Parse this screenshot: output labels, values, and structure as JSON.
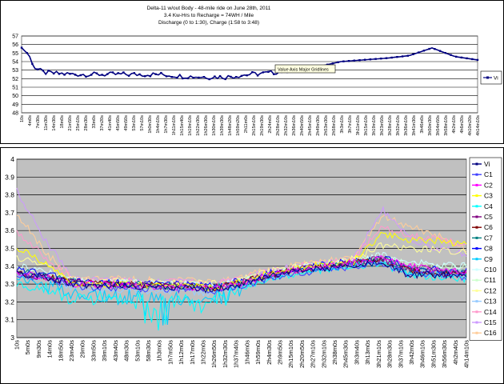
{
  "chart_data": [
    {
      "type": "line",
      "title": "Delta-11 w/out Body -  48-mile ride on June 28th, 2011",
      "subtitle": [
        "3.4 Kw-Hrs to Recharge = 74WH / Mile",
        "Discharge (0 to 1:30), Charge (1:58 to 3:48)"
      ],
      "x_ticks": [
        "10s",
        "4m0s",
        "7m30s",
        "11m30s",
        "14m30s",
        "18m0s",
        "21m50s",
        "25m10s",
        "28m30s",
        "33m0s",
        "37m20s",
        "41m40s",
        "45m50s",
        "49m50s",
        "53m10s",
        "57m10s",
        "1h0m30s",
        "1h4m10s",
        "1h7m30s",
        "1h11m10s",
        "1h15m40s",
        "1h19m10s",
        "1h22m30s",
        "1h26m30s",
        "1h30m10s",
        "1h39m30s",
        "1h48m20s",
        "1h59m20s",
        "2h11m0s",
        "2h15m10s",
        "2h19m30s",
        "2h24m0s",
        "2h28m10s",
        "2h32m10s",
        "2h36m10s",
        "2h40m50s",
        "2h45m10s",
        "2h49m30s",
        "2h53m30s",
        "2h58m10s",
        "3h3m10s",
        "3h7m10s",
        "3h11m10s",
        "3h15m10s",
        "3h19m10s",
        "3h23m50s",
        "3h28m10s",
        "3h32m10s",
        "3h36m10s",
        "3h41m30s",
        "3h46m0s",
        "3h50m30s",
        "3h54m50s",
        "3h58m10s",
        "4h2m10s",
        "4h6m20s",
        "4h10m20s",
        "4h14m10s"
      ],
      "y_ticks": [
        "48",
        "49",
        "50",
        "51",
        "52",
        "53",
        "54",
        "55",
        "56",
        "57"
      ],
      "ylim": [
        48,
        57
      ],
      "grid": true,
      "legend_position": "right",
      "annotation": "Value Axis Major Gridlines",
      "series": [
        {
          "name": "Vi",
          "color": "#000080",
          "x": [
            0,
            0.01,
            0.02,
            0.03,
            0.05,
            0.08,
            0.12,
            0.2,
            0.3,
            0.35,
            0.4,
            0.45,
            0.5,
            0.55,
            0.6,
            0.65,
            0.7,
            0.75,
            0.8,
            0.85,
            0.9,
            0.95,
            1.0
          ],
          "values": [
            55.6,
            55.2,
            54.3,
            53.2,
            52.7,
            52.6,
            52.5,
            52.5,
            52.5,
            52.3,
            52.2,
            52.2,
            52.5,
            52.7,
            53.1,
            53.4,
            54.0,
            54.2,
            54.4,
            54.7,
            55.6,
            54.6,
            54.2
          ]
        }
      ]
    },
    {
      "type": "line",
      "x_ticks": [
        "10s",
        "5m0s",
        "9m30s",
        "14m0s",
        "18m50s",
        "23m40s",
        "29m0s",
        "33m50s",
        "39m10s",
        "43m40s",
        "48m30s",
        "53m10s",
        "58m30s",
        "1h3m0s",
        "1h7m50s",
        "1h12m0s",
        "1h17m0s",
        "1h22m0s",
        "1h26m50s",
        "1h32m30s",
        "1h37m40s",
        "1h46m0s",
        "1h59m0s",
        "2h4m30s",
        "2h9m50s",
        "2h15m10s",
        "2h20m50s",
        "2h27m10s",
        "2h32m10s",
        "2h38m0s",
        "2h45m30s",
        "3h3m40s",
        "3h13m0s",
        "3h21m10s",
        "3h28m30s",
        "3h37m10s",
        "3h42m0s",
        "3h46m10s",
        "3h51m30s",
        "3h56m30s",
        "4h2m40s",
        "4h14m10s"
      ],
      "y_ticks": [
        "3",
        "3.1",
        "3.2",
        "3.3",
        "3.4",
        "3.5",
        "3.6",
        "3.7",
        "3.8",
        "3.9",
        "4"
      ],
      "ylim": [
        3,
        4
      ],
      "grid": true,
      "legend_position": "right",
      "series": [
        {
          "name": "Vi",
          "color": "#000080",
          "values": [
            3.36,
            3.34,
            3.3,
            3.29,
            3.29,
            3.28,
            3.28,
            3.27,
            3.3,
            3.34,
            3.37,
            3.39,
            3.41,
            3.42,
            3.35,
            3.35,
            3.35
          ]
        },
        {
          "name": "C1",
          "color": "#4040ff",
          "values": [
            3.35,
            3.33,
            3.29,
            3.28,
            3.28,
            3.27,
            3.27,
            3.26,
            3.29,
            3.33,
            3.36,
            3.38,
            3.4,
            3.41,
            3.36,
            3.35,
            3.34
          ]
        },
        {
          "name": "C2",
          "color": "#ff00ff",
          "values": [
            3.36,
            3.34,
            3.3,
            3.3,
            3.29,
            3.28,
            3.28,
            3.27,
            3.3,
            3.35,
            3.38,
            3.4,
            3.42,
            3.45,
            3.4,
            3.38,
            3.37
          ]
        },
        {
          "name": "C3",
          "color": "#ffff00",
          "values": [
            3.5,
            3.42,
            3.3,
            3.3,
            3.3,
            3.29,
            3.29,
            3.28,
            3.31,
            3.36,
            3.39,
            3.41,
            3.43,
            3.58,
            3.55,
            3.54,
            3.52
          ]
        },
        {
          "name": "C4",
          "color": "#00ffff",
          "values": [
            3.3,
            3.26,
            3.22,
            3.22,
            3.22,
            3.2,
            3.19,
            3.2,
            3.28,
            3.33,
            3.36,
            3.38,
            3.4,
            3.41,
            3.35,
            3.34,
            3.33
          ]
        },
        {
          "name": "C5",
          "color": "#800080",
          "values": [
            3.36,
            3.34,
            3.31,
            3.3,
            3.3,
            3.29,
            3.29,
            3.28,
            3.31,
            3.35,
            3.38,
            3.4,
            3.42,
            3.44,
            3.38,
            3.37,
            3.36
          ]
        },
        {
          "name": "C6",
          "color": "#800000",
          "values": [
            3.36,
            3.34,
            3.31,
            3.3,
            3.3,
            3.29,
            3.29,
            3.28,
            3.31,
            3.35,
            3.38,
            3.4,
            3.42,
            3.43,
            3.37,
            3.36,
            3.35
          ]
        },
        {
          "name": "C7",
          "color": "#008080",
          "values": [
            3.37,
            3.35,
            3.31,
            3.3,
            3.3,
            3.29,
            3.29,
            3.28,
            3.31,
            3.35,
            3.38,
            3.4,
            3.42,
            3.44,
            3.38,
            3.37,
            3.36
          ]
        },
        {
          "name": "C8",
          "color": "#0000ff",
          "values": [
            3.38,
            3.36,
            3.32,
            3.31,
            3.31,
            3.3,
            3.3,
            3.29,
            3.32,
            3.36,
            3.39,
            3.41,
            3.43,
            3.45,
            3.39,
            3.38,
            3.37
          ]
        },
        {
          "name": "C9",
          "color": "#00ccff",
          "values": [
            3.34,
            3.3,
            3.24,
            3.23,
            3.23,
            3.22,
            3.21,
            3.22,
            3.29,
            3.34,
            3.37,
            3.39,
            3.41,
            3.42,
            3.36,
            3.35,
            3.34
          ]
        },
        {
          "name": "C10",
          "color": "#ccffff",
          "values": [
            3.4,
            3.37,
            3.32,
            3.31,
            3.31,
            3.3,
            3.3,
            3.29,
            3.32,
            3.36,
            3.39,
            3.41,
            3.43,
            3.46,
            3.42,
            3.41,
            3.4
          ]
        },
        {
          "name": "C11",
          "color": "#ccffcc",
          "values": [
            3.38,
            3.35,
            3.31,
            3.31,
            3.31,
            3.3,
            3.3,
            3.29,
            3.32,
            3.36,
            3.39,
            3.41,
            3.43,
            3.45,
            3.41,
            3.4,
            3.39
          ]
        },
        {
          "name": "C12",
          "color": "#ffff99",
          "values": [
            3.45,
            3.4,
            3.32,
            3.32,
            3.32,
            3.31,
            3.31,
            3.3,
            3.33,
            3.37,
            3.4,
            3.42,
            3.44,
            3.52,
            3.5,
            3.49,
            3.48
          ]
        },
        {
          "name": "C13",
          "color": "#99ccff",
          "values": [
            3.36,
            3.33,
            3.28,
            3.27,
            3.27,
            3.26,
            3.26,
            3.25,
            3.3,
            3.35,
            3.38,
            3.4,
            3.42,
            3.43,
            3.38,
            3.37,
            3.36
          ]
        },
        {
          "name": "C14",
          "color": "#ff99cc",
          "values": [
            3.6,
            3.45,
            3.33,
            3.32,
            3.32,
            3.31,
            3.31,
            3.3,
            3.33,
            3.37,
            3.4,
            3.42,
            3.44,
            3.62,
            3.57,
            3.55,
            3.52
          ]
        },
        {
          "name": "C15",
          "color": "#cc99ff",
          "values": [
            3.82,
            3.55,
            3.33,
            3.32,
            3.32,
            3.31,
            3.31,
            3.3,
            3.33,
            3.37,
            3.4,
            3.42,
            3.44,
            3.72,
            3.55,
            3.5,
            3.47
          ]
        },
        {
          "name": "C16",
          "color": "#ffcc99",
          "values": [
            3.7,
            3.48,
            3.33,
            3.33,
            3.33,
            3.32,
            3.32,
            3.31,
            3.34,
            3.38,
            3.41,
            3.43,
            3.45,
            3.68,
            3.62,
            3.57,
            3.5
          ]
        }
      ]
    }
  ]
}
